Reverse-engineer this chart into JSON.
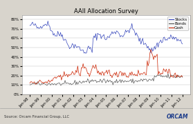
{
  "title": "AAII Allocation Survey",
  "source_text": "Source: Orcam Financial Group, LLC",
  "orcam_text": "ORCAM",
  "legend_labels": [
    "Stocks",
    "Bonds",
    "Cash"
  ],
  "line_colors": [
    "#3344bb",
    "#555555",
    "#cc2200"
  ],
  "x_tick_labels": [
    "Jan-98",
    "Jan-99",
    "Jan-00",
    "Jan-01",
    "Jan-02",
    "Jan-03",
    "Jan-04",
    "Jan-05",
    "Jan-06",
    "Jan-07",
    "Jan-08",
    "Jan-09",
    "Jan-10",
    "Jan-11",
    "Jan-12"
  ],
  "ylim": [
    0,
    85
  ],
  "yticks": [
    0,
    10,
    20,
    30,
    40,
    50,
    60,
    70,
    80
  ],
  "ytick_labels": [
    "0%",
    "10%",
    "20%",
    "30%",
    "40%",
    "50%",
    "60%",
    "70%",
    "80%"
  ],
  "fig_bg_color": "#d8d4cc",
  "plot_bg_color": "#ffffff",
  "footer_bg_color": "#e8e4dc",
  "title_fontsize": 6.0,
  "tick_fontsize": 4.0,
  "legend_fontsize": 4.0,
  "source_fontsize": 3.8,
  "orcam_fontsize": 5.5,
  "line_width": 0.5,
  "n_months": 170,
  "random_seed": 42
}
